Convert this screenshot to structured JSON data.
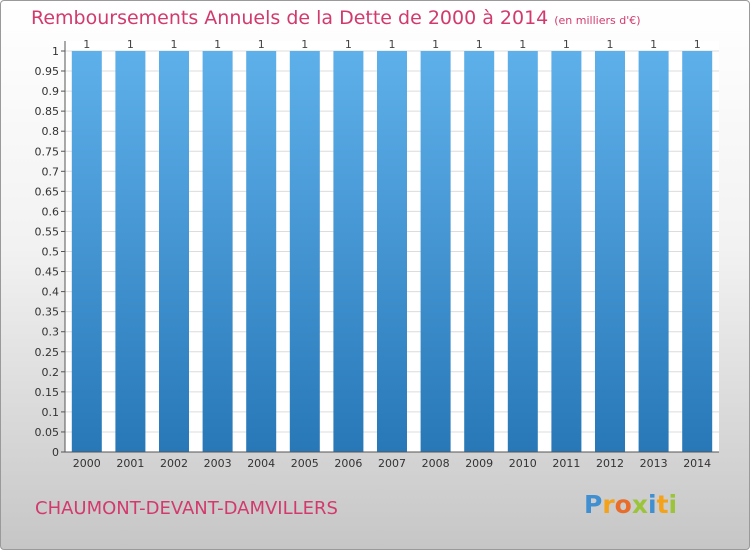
{
  "title": "Remboursements Annuels de la Dette de 2000 à 2014",
  "unit": "(en milliers d'€)",
  "commune": "CHAUMONT-DEVANT-DAMVILLERS",
  "logo": {
    "p": "P",
    "r": "r",
    "o": "o",
    "x": "x",
    "i1": "i",
    "t": "t",
    "i2": "i"
  },
  "colors": {
    "title": "#d23a6e",
    "bar_top": "#5eb0ea",
    "bar_bottom": "#2878b8",
    "grid": "#dcdcdc",
    "axis": "#555555"
  },
  "chart_data": {
    "type": "bar",
    "title": "Remboursements Annuels de la Dette de 2000 à 2014",
    "xlabel": "",
    "ylabel": "",
    "ylim": [
      0,
      1
    ],
    "grid": true,
    "categories": [
      "2000",
      "2001",
      "2002",
      "2003",
      "2004",
      "2005",
      "2006",
      "2007",
      "2008",
      "2009",
      "2010",
      "2011",
      "2012",
      "2013",
      "2014"
    ],
    "values": [
      1,
      1,
      1,
      1,
      1,
      1,
      1,
      1,
      1,
      1,
      1,
      1,
      1,
      1,
      1
    ],
    "data_labels": [
      "1",
      "1",
      "1",
      "1",
      "1",
      "1",
      "1",
      "1",
      "1",
      "1",
      "1",
      "1",
      "1",
      "1",
      "1"
    ],
    "yticks": [
      0,
      0.05,
      0.1,
      0.15,
      0.2,
      0.25,
      0.3,
      0.35,
      0.4,
      0.45,
      0.5,
      0.55,
      0.6,
      0.65,
      0.7,
      0.75,
      0.8,
      0.85,
      0.9,
      0.95,
      1
    ],
    "ytick_labels": [
      "0",
      "0.05",
      "0.1",
      "0.15",
      "0.2",
      "0.25",
      "0.3",
      "0.35",
      "0.4",
      "0.45",
      "0.5",
      "0.55",
      "0.6",
      "0.65",
      "0.7",
      "0.75",
      "0.8",
      "0.85",
      "0.9",
      "0.95",
      "1"
    ]
  }
}
